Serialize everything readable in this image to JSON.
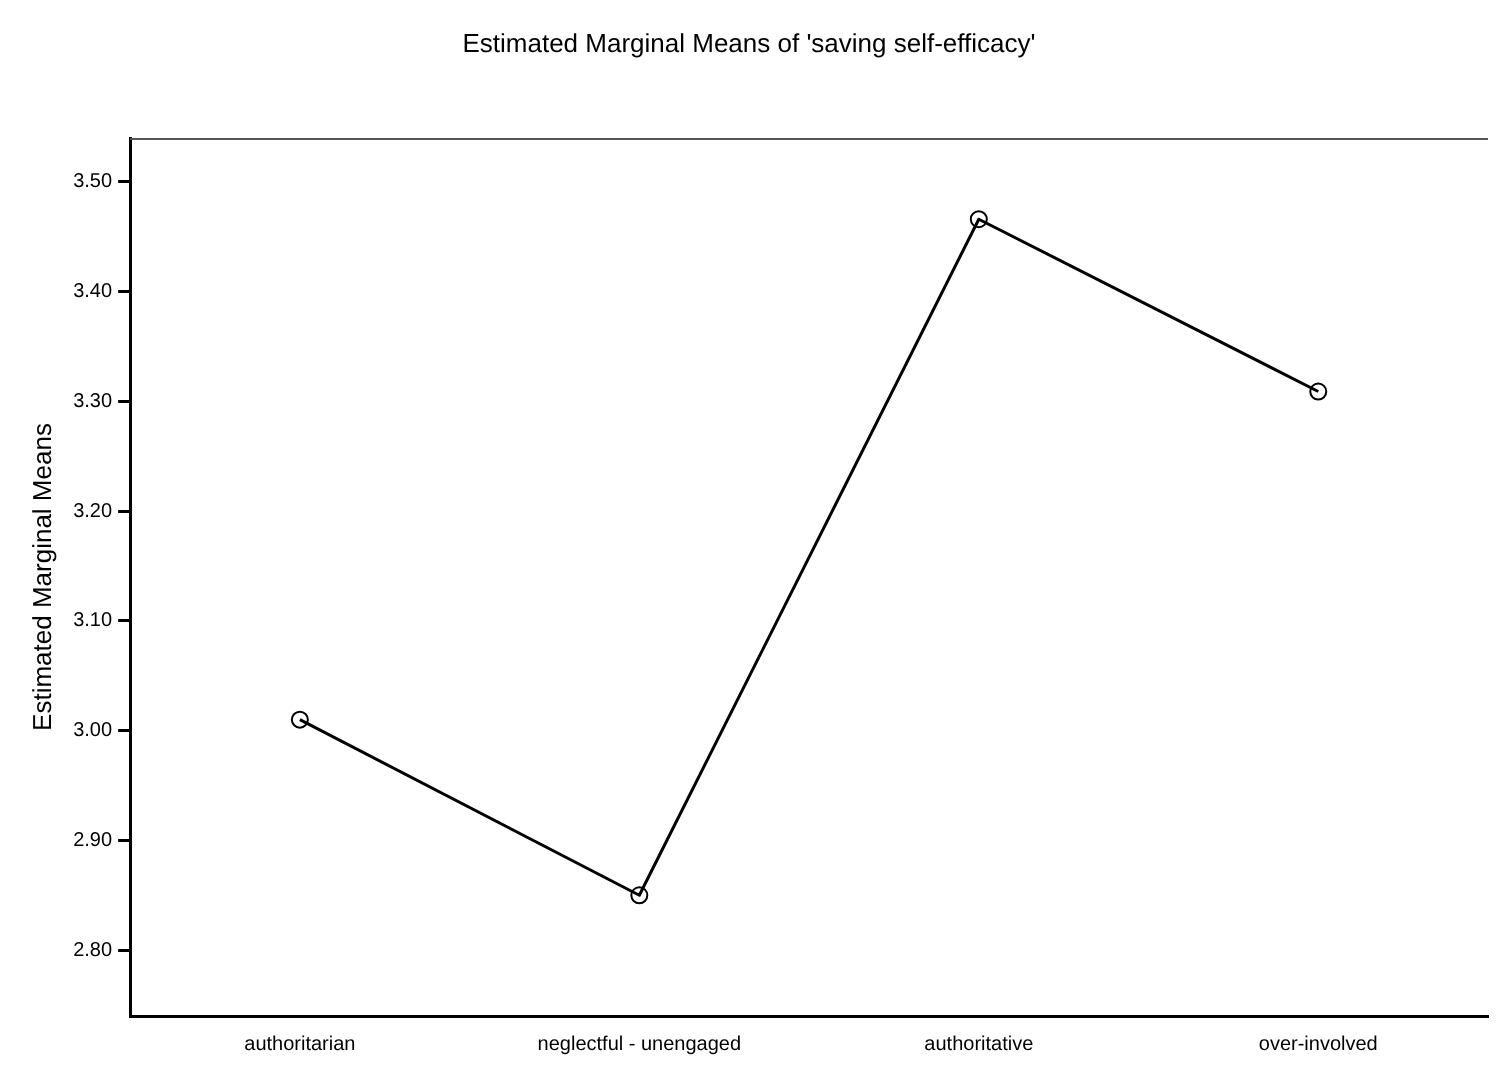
{
  "chart_data": {
    "type": "line",
    "title": "Estimated Marginal Means of 'saving self-efficacy'",
    "ylabel": "Estimated Marginal Means",
    "categories": [
      "authoritarian",
      "neglectful - unengaged",
      "authoritative",
      "over-involved"
    ],
    "series": [
      {
        "color": "#000000",
        "values": [
          3.01,
          2.85,
          3.466,
          3.309
        ]
      }
    ],
    "ylim": [
      2.74,
      3.54
    ],
    "yticks": [
      {
        "value": 2.8,
        "label": "2.80"
      },
      {
        "value": 2.9,
        "label": "2.90"
      },
      {
        "value": 3.0,
        "label": "3.00"
      },
      {
        "value": 3.1,
        "label": "3.10"
      },
      {
        "value": 3.2,
        "label": "3.20"
      },
      {
        "value": 3.3,
        "label": "3.30"
      },
      {
        "value": 3.4,
        "label": "3.40"
      },
      {
        "value": 3.5,
        "label": "3.50"
      }
    ],
    "grid": false,
    "legend": false,
    "marker": "circle",
    "line_style": "solid"
  }
}
